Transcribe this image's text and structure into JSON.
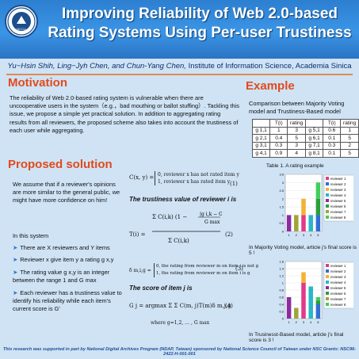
{
  "header": {
    "title_line1": "Improving  Reliability  of Web 2.0-based",
    "title_line2": "Rating Systems Using Per-user Trustiness",
    "logo_alt": "NCCU",
    "authors": "Yu−Hsin Shih, Ling−Jyh Chen, and Chun-Yang Chen,",
    "institute": "Institute of Information Science, Academia Sinica"
  },
  "motivation": {
    "heading": "Motivation",
    "text": "The reliability of Web 2.0-based rating system is vulnerable when there are uncooperative users in the system（e.g.，bad mouthing or ballot stuffing）. Tackling this issue, we propose a  simple yet  practical solution. In addition to aggregating rating results from all reviewers, the proposed scheme also takes into account the trustiness of each user while aggregating."
  },
  "proposed": {
    "heading": "Proposed solution",
    "assumption": "We assume that if a reviewer's opinions are more similar to the general public, we might have more confidence on him!",
    "system_label": "In this system",
    "bullets": [
      "There are X reviewers and Y items",
      "Reviewer x give item y a rating g x,y",
      "The rating value g x,y is an integer between the range 1 and G max",
      "Each reviewer has a trustiness value to identify his reliability while each item's current score is G'"
    ],
    "eq1_lines": [
      "0, reviewer x has not rated item y",
      "1, reviewer x has rated item y"
    ],
    "eq1_lhs": "C(x, y) =",
    "eq1_num": "(1)",
    "trust_heading": "The trustiness value of reviewer i is",
    "eq2_lhs": "T(i) =",
    "eq2_num": "(2)",
    "eq3_lhs": "δ m,i,g =",
    "eq3_lines": [
      "0, the rating from reviewer m on item i is not g",
      "1, the rating from reviewer m on item i is g"
    ],
    "eq3_num": "(3)",
    "score_heading": "The score of item j is",
    "eq4": "G j = argmax Σ Σ C(m, j)T(m)δ m,j,g",
    "eq4_num": "(4)",
    "eq4_where": "where g=1,2, … , G max"
  },
  "example": {
    "heading": "Example",
    "intro": "Comparison between  Majority Voting model and Trustiness-Based model",
    "table_headers": [
      "",
      "T(i)",
      "rating",
      "",
      "T(i)",
      "rating"
    ],
    "table_rows": [
      [
        "g 1,1",
        "1",
        "3",
        "g 5,1",
        "0.6",
        "1"
      ],
      [
        "g 2,1",
        "0.4",
        "5",
        "g 6,1",
        "0.1",
        "5"
      ],
      [
        "g 3,1",
        "0.3",
        "3",
        "g 7,1",
        "0.3",
        "2"
      ],
      [
        "g 4,1",
        "0.9",
        "4",
        "g 8,1",
        "0.1",
        "5"
      ]
    ],
    "table_caption": "Table 1.  A rating example",
    "caption1": "In Majority Voting model, article j's final score is 5 !",
    "caption2": "In Trusinesst-Based model, article j's final score is 3 !"
  },
  "chart_data": [
    {
      "type": "bar",
      "stacked": true,
      "categories": [
        "1",
        "2",
        "3",
        "4",
        "5"
      ],
      "ylim": [
        0,
        3.5
      ],
      "yticks": [
        "0",
        "0.5",
        "1",
        "1.5",
        "2",
        "2.5",
        "3",
        "3.5"
      ],
      "series": [
        {
          "name": "reviewer 1",
          "color": "#e03a8a",
          "values": [
            0,
            0,
            1,
            0,
            0
          ]
        },
        {
          "name": "reviewer 2",
          "color": "#2f6fd6",
          "values": [
            0,
            0,
            0,
            0,
            1
          ]
        },
        {
          "name": "reviewer 3",
          "color": "#f2b233",
          "values": [
            0,
            0,
            1,
            0,
            0
          ]
        },
        {
          "name": "reviewer 4",
          "color": "#28b7c8",
          "values": [
            0,
            0,
            0,
            1,
            0
          ]
        },
        {
          "name": "reviewer 5",
          "color": "#8a2ba0",
          "values": [
            1,
            0,
            0,
            0,
            0
          ]
        },
        {
          "name": "reviewer 6",
          "color": "#2a9f3a",
          "values": [
            0,
            0,
            0,
            0,
            1
          ]
        },
        {
          "name": "reviewer 7",
          "color": "#9ea63a",
          "values": [
            0,
            1,
            0,
            0,
            0
          ]
        },
        {
          "name": "reviewer 8",
          "color": "#3fcf5a",
          "values": [
            0,
            0,
            0,
            0,
            1
          ]
        }
      ],
      "legend": "right"
    },
    {
      "type": "bar",
      "stacked": true,
      "categories": [
        "1",
        "2",
        "3",
        "4",
        "5"
      ],
      "ylim": [
        0,
        1.6
      ],
      "yticks": [
        "0",
        "0.2",
        "0.4",
        "0.6",
        "0.8",
        "1",
        "1.2",
        "1.4",
        "1.6"
      ],
      "series": [
        {
          "name": "reviewer 1",
          "color": "#e03a8a",
          "values": [
            0,
            0,
            1,
            0,
            0
          ]
        },
        {
          "name": "reviewer 2",
          "color": "#2f6fd6",
          "values": [
            0,
            0,
            0,
            0,
            0.4
          ]
        },
        {
          "name": "reviewer 3",
          "color": "#f2b233",
          "values": [
            0,
            0,
            0.3,
            0,
            0
          ]
        },
        {
          "name": "reviewer 4",
          "color": "#28b7c8",
          "values": [
            0,
            0,
            0,
            0.9,
            0
          ]
        },
        {
          "name": "reviewer 5",
          "color": "#8a2ba0",
          "values": [
            0.6,
            0,
            0,
            0,
            0
          ]
        },
        {
          "name": "reviewer 6",
          "color": "#2a9f3a",
          "values": [
            0,
            0,
            0,
            0,
            0.1
          ]
        },
        {
          "name": "reviewer 7",
          "color": "#9ea63a",
          "values": [
            0,
            0.3,
            0,
            0,
            0
          ]
        },
        {
          "name": "reviewer 8",
          "color": "#3fcf5a",
          "values": [
            0,
            0,
            0,
            0,
            0.1
          ]
        }
      ],
      "legend": "right"
    }
  ],
  "footer": "This research was supported in part by National Digital Archives Program (NDAP, Taiwan) sponsored by National Science Council of Taiwan under NSC Grants: NSC96-2422-H-001-001"
}
